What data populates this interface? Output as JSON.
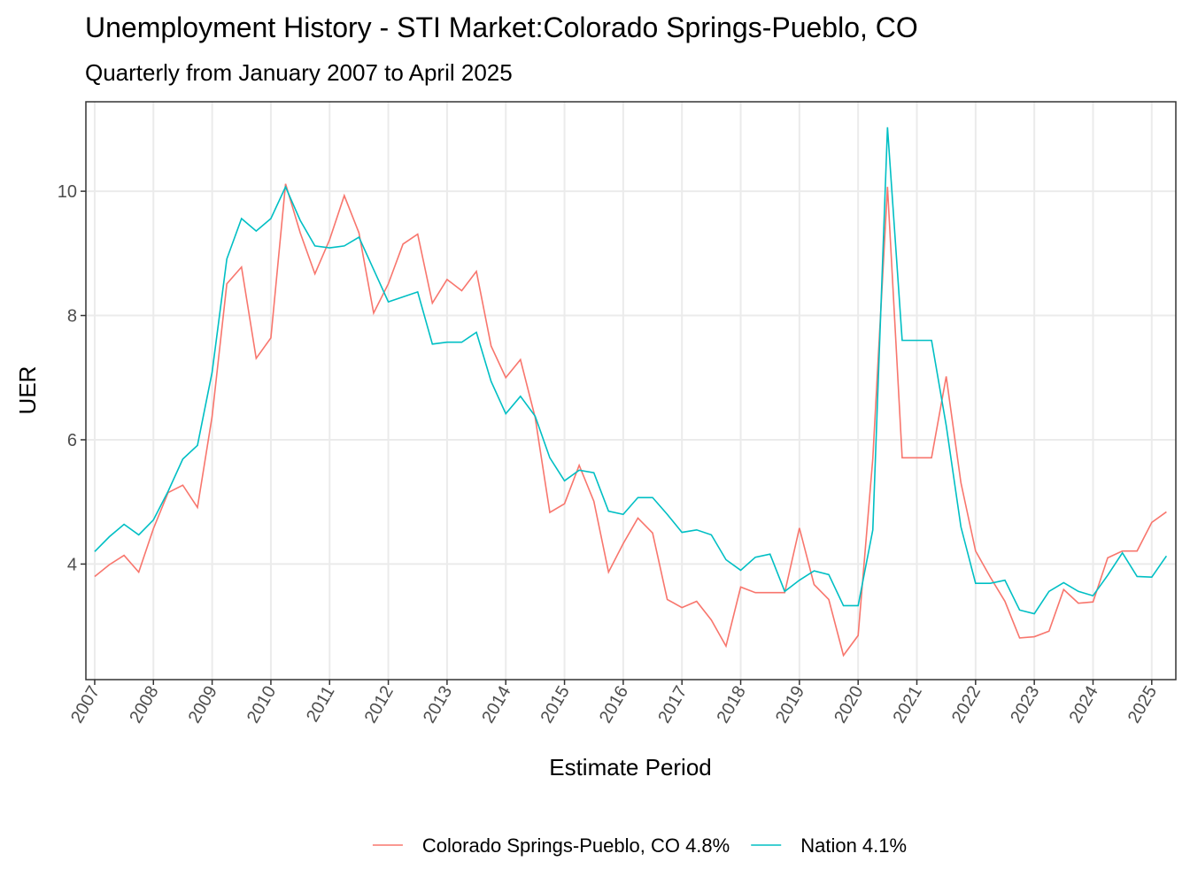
{
  "chart_data": {
    "type": "line",
    "title": "Unemployment History - STI Market:Colorado Springs-Pueblo, CO",
    "subtitle": "Quarterly from January 2007 to April 2025",
    "x_label": "Estimate Period",
    "y_label": "UER",
    "x": [
      2007,
      2007.25,
      2007.5,
      2007.75,
      2008,
      2008.25,
      2008.5,
      2008.75,
      2009,
      2009.25,
      2009.5,
      2009.75,
      2010,
      2010.25,
      2010.5,
      2010.75,
      2011,
      2011.25,
      2011.5,
      2011.75,
      2012,
      2012.25,
      2012.5,
      2012.75,
      2013,
      2013.25,
      2013.5,
      2013.75,
      2014,
      2014.25,
      2014.5,
      2014.75,
      2015,
      2015.25,
      2015.5,
      2015.75,
      2016,
      2016.25,
      2016.5,
      2016.75,
      2017,
      2017.25,
      2017.5,
      2017.75,
      2018,
      2018.25,
      2018.5,
      2018.75,
      2019,
      2019.25,
      2019.5,
      2019.75,
      2020,
      2020.25,
      2020.5,
      2020.75,
      2021,
      2021.25,
      2021.5,
      2021.75,
      2022,
      2022.25,
      2022.5,
      2022.75,
      2023,
      2023.25,
      2023.5,
      2023.75,
      2024,
      2024.25,
      2024.5,
      2024.75,
      2025,
      2025.25
    ],
    "series": [
      {
        "name": "Colorado Springs-Pueblo, CO 4.8%",
        "color": "#F8766D",
        "values": [
          3.8,
          3.99,
          4.14,
          3.87,
          4.57,
          5.15,
          5.27,
          4.91,
          6.38,
          8.51,
          8.78,
          7.31,
          7.64,
          10.12,
          9.33,
          8.67,
          9.22,
          9.93,
          9.33,
          8.04,
          8.51,
          9.15,
          9.31,
          8.2,
          8.58,
          8.4,
          8.71,
          7.51,
          7.0,
          7.29,
          6.36,
          4.83,
          4.97,
          5.59,
          5.01,
          3.87,
          4.33,
          4.74,
          4.5,
          3.43,
          3.3,
          3.4,
          3.1,
          2.68,
          3.63,
          3.54,
          3.54,
          3.54,
          4.58,
          3.67,
          3.43,
          2.53,
          2.85,
          5.7,
          10.07,
          5.71,
          5.71,
          5.71,
          7.02,
          5.31,
          4.21,
          3.79,
          3.4,
          2.81,
          2.83,
          2.92,
          3.59,
          3.37,
          3.39,
          4.1,
          4.21,
          4.21,
          4.67,
          4.84
        ]
      },
      {
        "name": "Nation 4.1%",
        "color": "#00BFC4",
        "values": [
          4.2,
          4.44,
          4.64,
          4.47,
          4.71,
          5.17,
          5.69,
          5.91,
          7.09,
          8.91,
          9.56,
          9.36,
          9.56,
          10.07,
          9.53,
          9.12,
          9.09,
          9.12,
          9.26,
          8.74,
          8.22,
          8.3,
          8.38,
          7.54,
          7.57,
          7.57,
          7.73,
          6.94,
          6.42,
          6.7,
          6.38,
          5.71,
          5.34,
          5.51,
          5.47,
          4.85,
          4.8,
          5.07,
          5.07,
          4.8,
          4.51,
          4.55,
          4.47,
          4.07,
          3.9,
          4.11,
          4.16,
          3.56,
          3.74,
          3.89,
          3.83,
          3.33,
          3.33,
          4.55,
          11.03,
          7.6,
          7.6,
          7.6,
          6.23,
          4.6,
          3.69,
          3.69,
          3.74,
          3.26,
          3.2,
          3.56,
          3.7,
          3.56,
          3.49,
          3.82,
          4.18,
          3.8,
          3.79,
          4.13
        ]
      }
    ],
    "xlim": [
      2006.85,
      2025.41
    ],
    "xticks": [
      2007,
      2008,
      2009,
      2010,
      2011,
      2012,
      2013,
      2014,
      2015,
      2016,
      2017,
      2018,
      2019,
      2020,
      2021,
      2022,
      2023,
      2024,
      2025
    ],
    "ylim": [
      2.14,
      11.44
    ],
    "yticks": [
      4,
      6,
      8,
      10
    ],
    "grid": true,
    "legend": "bottom"
  }
}
